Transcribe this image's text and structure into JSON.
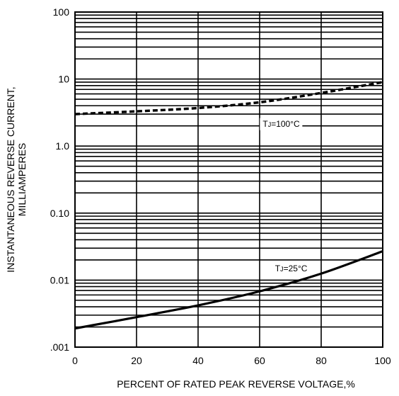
{
  "chart_data": {
    "type": "line",
    "title": "",
    "xlabel": "PERCENT OF RATED PEAK REVERSE VOLTAGE,%",
    "ylabel_lines": [
      "INSTANTANEOUS REVERSE CURRENT,",
      "MILLIAMPERES"
    ],
    "x_ticks": [
      {
        "value": 0,
        "label": "0"
      },
      {
        "value": 20,
        "label": "20"
      },
      {
        "value": 40,
        "label": "40"
      },
      {
        "value": 60,
        "label": "60"
      },
      {
        "value": 80,
        "label": "80"
      },
      {
        "value": 100,
        "label": "100"
      }
    ],
    "y_ticks": [
      {
        "value": 0.001,
        "label": ".001"
      },
      {
        "value": 0.01,
        "label": "0.01"
      },
      {
        "value": 0.1,
        "label": "0.10"
      },
      {
        "value": 1,
        "label": "1.0"
      },
      {
        "value": 10,
        "label": "10"
      },
      {
        "value": 100,
        "label": "100"
      }
    ],
    "xlim": [
      0,
      100
    ],
    "ylim": [
      0.001,
      100
    ],
    "y_scale": "log",
    "grid": true,
    "series": [
      {
        "name": "TJ=100°C",
        "style": "dashed",
        "color": "#000000",
        "x": [
          0,
          20,
          40,
          60,
          80,
          100
        ],
        "y": [
          3.0,
          3.3,
          3.7,
          4.5,
          6.2,
          9.0
        ]
      },
      {
        "name": "TJ=25°C",
        "style": "solid",
        "color": "#000000",
        "x": [
          0,
          20,
          40,
          60,
          80,
          100
        ],
        "y": [
          0.0019,
          0.0028,
          0.0042,
          0.0068,
          0.0125,
          0.027
        ]
      }
    ],
    "annotations": [
      {
        "label_main": "T",
        "label_sub": "J",
        "label_rest": "=100°C",
        "x": 61,
        "y": 1.95
      },
      {
        "label_main": "T",
        "label_sub": "J",
        "label_rest": "=25°C",
        "x": 65,
        "y": 0.0135
      }
    ]
  }
}
